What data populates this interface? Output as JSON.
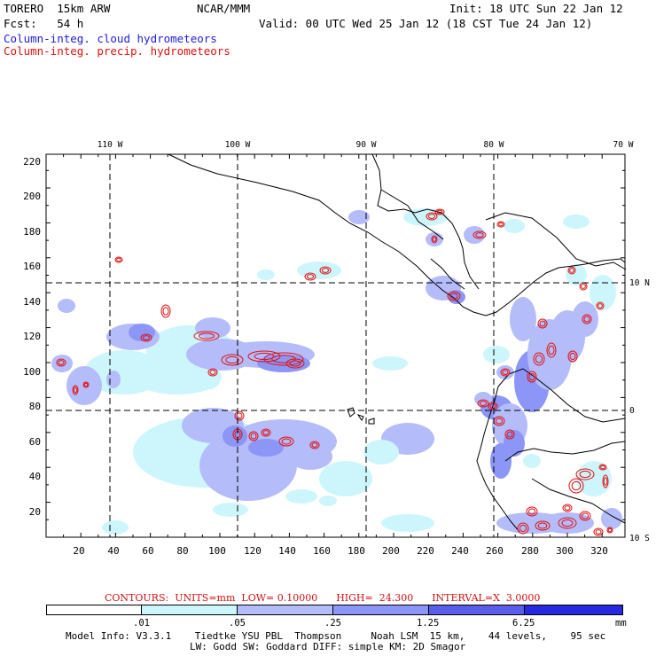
{
  "header": {
    "model": "TORERO  15km ARW",
    "org": "NCAR/MMM",
    "init": "Init: 18 UTC Sun 22 Jan 12",
    "fcst": "Fcst:   54 h",
    "valid": "Valid: 00 UTC Wed 25 Jan 12 (18 CST Tue 24 Jan 12)",
    "field1": "Column-integ. cloud hydrometeors",
    "field2": "Column-integ. precip. hydrometeors"
  },
  "map": {
    "top_lon_labels": [
      "110 W",
      "100 W",
      "90 W",
      "80 W",
      "70 W"
    ],
    "right_lat_labels": [
      "10 N",
      "0",
      "10 S"
    ],
    "left_grid_labels": [
      "220",
      "200",
      "180",
      "160",
      "140",
      "120",
      "100",
      "80",
      "60",
      "40",
      "20"
    ],
    "bottom_grid_labels": [
      "20",
      "40",
      "60",
      "80",
      "100",
      "120",
      "140",
      "160",
      "180",
      "200",
      "220",
      "240",
      "260",
      "280",
      "300",
      "320"
    ]
  },
  "contours": {
    "text": "CONTOURS:  UNITS=mm  LOW= 0.10000      HIGH=  24.300      INTERVAL=X  3.0000"
  },
  "colorbar": {
    "colors": [
      "#ffffff",
      "#ccf6fc",
      "#b4bcfa",
      "#8c96f6",
      "#5a5cea",
      "#2828e0"
    ],
    "labels": [
      ".01",
      ".05",
      ".25",
      "1.25",
      "6.25"
    ],
    "units": "mm"
  },
  "footer": {
    "line1": "Model Info: V3.3.1    Tiedtke YSU PBL  Thompson     Noah LSM  15 km,    44 levels,    95 sec",
    "line2": "LW: Godd SW: Goddard DIFF: simple KM: 2D Smagor"
  }
}
